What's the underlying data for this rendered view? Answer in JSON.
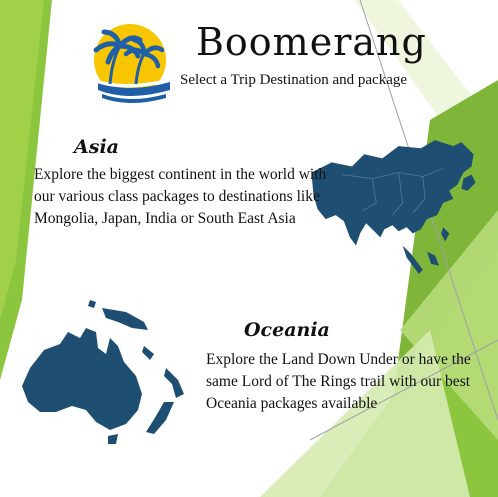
{
  "brand": {
    "name": "Boomerang",
    "tagline": "Select a Trip Destination and package"
  },
  "destinations": [
    {
      "title": "Asia",
      "description": "Explore the biggest continent in the world with our various class packages to destinations like Mongolia, Japan, India or South East Asia"
    },
    {
      "title": "Oceania",
      "description": "Explore the Land Down Under or have the same Lord of The Rings trail with our best Oceania packages available"
    }
  ],
  "colors": {
    "map_fill": "#1e4f73",
    "accent_green": "#8cc63f",
    "logo_sun": "#f7c600",
    "logo_blue": "#1f5fa8"
  },
  "icons": [
    "palm-beach-logo-icon",
    "asia-map-icon",
    "oceania-map-icon"
  ]
}
